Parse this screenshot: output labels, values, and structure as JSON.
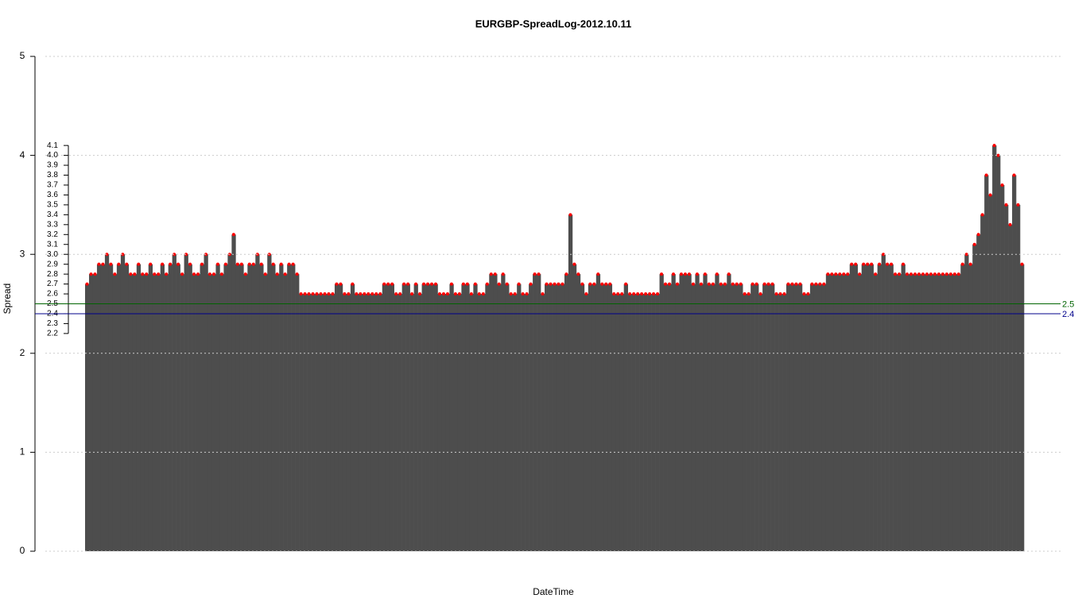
{
  "chart_data": {
    "type": "spike",
    "title": "EURGBP-SpreadLog-2012.10.11",
    "x_label": "DateTime",
    "y_label": "Spread",
    "bar_color": "#4d4d4d",
    "point_color": "#ff0000",
    "ylim": [
      0,
      5
    ],
    "yticks": [
      0,
      1,
      2,
      3,
      4,
      5
    ],
    "grid": true,
    "y2lim": [
      0,
      5
    ],
    "y2ticks": [
      2.2,
      2.3,
      2.4,
      2.5,
      2.6,
      2.7,
      2.8,
      2.9,
      {
        "value": 3,
        "label": "3.0"
      },
      3.1,
      3.2,
      3.3,
      3.4,
      3.5,
      3.6,
      3.7,
      3.8,
      3.9,
      {
        "value": 4,
        "label": "4.0"
      },
      4.1
    ],
    "hlines": [
      {
        "value": 2.5,
        "color": "#006400"
      },
      {
        "value": 2.4,
        "color": "#00008b"
      }
    ],
    "values": [
      2.7,
      2.8,
      2.8,
      2.9,
      2.9,
      3.0,
      2.9,
      2.8,
      2.9,
      3.0,
      2.9,
      2.8,
      2.8,
      2.9,
      2.8,
      2.8,
      2.9,
      2.8,
      2.8,
      2.9,
      2.8,
      2.9,
      3.0,
      2.9,
      2.8,
      3.0,
      2.9,
      2.8,
      2.8,
      2.9,
      3.0,
      2.8,
      2.8,
      2.9,
      2.8,
      2.9,
      3.0,
      3.2,
      2.9,
      2.9,
      2.8,
      2.9,
      2.9,
      3.0,
      2.9,
      2.8,
      3.0,
      2.9,
      2.8,
      2.9,
      2.8,
      2.9,
      2.9,
      2.8,
      2.6,
      2.6,
      2.6,
      2.6,
      2.6,
      2.6,
      2.6,
      2.6,
      2.6,
      2.7,
      2.7,
      2.6,
      2.6,
      2.7,
      2.6,
      2.6,
      2.6,
      2.6,
      2.6,
      2.6,
      2.6,
      2.7,
      2.7,
      2.7,
      2.6,
      2.6,
      2.7,
      2.7,
      2.6,
      2.7,
      2.6,
      2.7,
      2.7,
      2.7,
      2.7,
      2.6,
      2.6,
      2.6,
      2.7,
      2.6,
      2.6,
      2.7,
      2.7,
      2.6,
      2.7,
      2.6,
      2.6,
      2.7,
      2.8,
      2.8,
      2.7,
      2.8,
      2.7,
      2.6,
      2.6,
      2.7,
      2.6,
      2.6,
      2.7,
      2.8,
      2.8,
      2.6,
      2.7,
      2.7,
      2.7,
      2.7,
      2.7,
      2.8,
      3.4,
      2.9,
      2.8,
      2.7,
      2.6,
      2.7,
      2.7,
      2.8,
      2.7,
      2.7,
      2.7,
      2.6,
      2.6,
      2.6,
      2.7,
      2.6,
      2.6,
      2.6,
      2.6,
      2.6,
      2.6,
      2.6,
      2.6,
      2.8,
      2.7,
      2.7,
      2.8,
      2.7,
      2.8,
      2.8,
      2.8,
      2.7,
      2.8,
      2.7,
      2.8,
      2.7,
      2.7,
      2.8,
      2.7,
      2.7,
      2.8,
      2.7,
      2.7,
      2.7,
      2.6,
      2.6,
      2.7,
      2.7,
      2.6,
      2.7,
      2.7,
      2.7,
      2.6,
      2.6,
      2.6,
      2.7,
      2.7,
      2.7,
      2.7,
      2.6,
      2.6,
      2.7,
      2.7,
      2.7,
      2.7,
      2.8,
      2.8,
      2.8,
      2.8,
      2.8,
      2.8,
      2.9,
      2.9,
      2.8,
      2.9,
      2.9,
      2.9,
      2.8,
      2.9,
      3.0,
      2.9,
      2.9,
      2.8,
      2.8,
      2.9,
      2.8,
      2.8,
      2.8,
      2.8,
      2.8,
      2.8,
      2.8,
      2.8,
      2.8,
      2.8,
      2.8,
      2.8,
      2.8,
      2.8,
      2.9,
      3.0,
      2.9,
      3.1,
      3.2,
      3.4,
      3.8,
      3.6,
      4.1,
      4.0,
      3.7,
      3.5,
      3.3,
      3.8,
      3.5,
      2.9
    ]
  }
}
